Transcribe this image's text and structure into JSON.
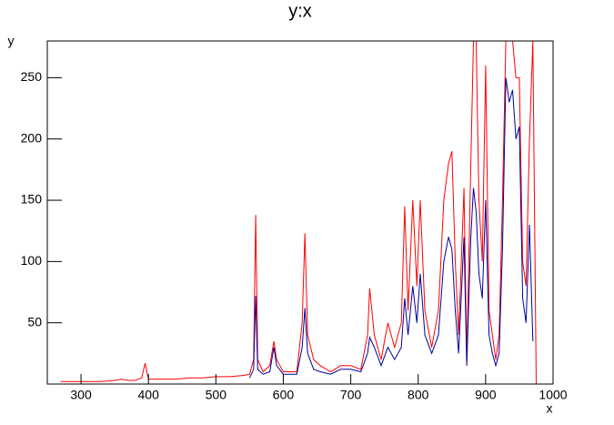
{
  "chart_data": {
    "type": "line",
    "title": "y:x",
    "x_label": "x",
    "y_label": "y",
    "xlim": [
      250,
      1000
    ],
    "ylim": [
      0,
      280
    ],
    "xticks": [
      300,
      400,
      500,
      600,
      700,
      800,
      900,
      1000
    ],
    "yticks": [
      50,
      100,
      150,
      200,
      250
    ],
    "x": [
      270,
      290,
      310,
      330,
      350,
      360,
      370,
      380,
      390,
      395,
      400,
      420,
      440,
      460,
      480,
      500,
      520,
      540,
      550,
      556,
      559,
      562,
      570,
      580,
      586,
      590,
      600,
      620,
      628,
      632,
      636,
      645,
      655,
      670,
      685,
      700,
      715,
      725,
      728,
      735,
      745,
      755,
      765,
      775,
      780,
      785,
      792,
      798,
      803,
      810,
      820,
      830,
      838,
      845,
      850,
      855,
      860,
      868,
      872,
      878,
      882,
      886,
      890,
      895,
      900,
      905,
      910,
      915,
      920,
      925,
      930,
      935,
      940,
      945,
      950,
      955,
      960,
      965,
      970,
      975
    ],
    "series": [
      {
        "name": "red",
        "color": "#ff0000",
        "values": [
          2,
          2,
          2,
          2,
          3,
          4,
          3,
          3,
          5,
          17,
          4,
          4,
          4,
          5,
          5,
          6,
          6,
          7,
          8,
          20,
          138,
          20,
          10,
          15,
          35,
          20,
          10,
          10,
          50,
          123,
          40,
          20,
          15,
          10,
          15,
          15,
          12,
          40,
          78,
          40,
          20,
          50,
          30,
          50,
          145,
          60,
          150,
          80,
          150,
          60,
          30,
          60,
          150,
          180,
          190,
          100,
          40,
          160,
          20,
          180,
          280,
          280,
          150,
          100,
          260,
          60,
          40,
          20,
          40,
          150,
          280,
          280,
          280,
          250,
          250,
          100,
          80,
          200,
          280,
          0
        ]
      },
      {
        "name": "blue",
        "color": "#000099",
        "values": [
          null,
          null,
          null,
          null,
          null,
          null,
          null,
          null,
          null,
          null,
          null,
          null,
          null,
          null,
          null,
          null,
          null,
          null,
          5,
          12,
          72,
          12,
          8,
          10,
          30,
          15,
          8,
          8,
          30,
          62,
          25,
          12,
          10,
          8,
          12,
          12,
          10,
          25,
          38,
          30,
          15,
          30,
          20,
          30,
          70,
          40,
          80,
          50,
          90,
          40,
          25,
          40,
          100,
          120,
          110,
          60,
          25,
          120,
          15,
          120,
          160,
          140,
          90,
          70,
          150,
          40,
          25,
          15,
          25,
          110,
          250,
          230,
          240,
          200,
          210,
          70,
          50,
          130,
          35,
          null
        ]
      }
    ]
  }
}
